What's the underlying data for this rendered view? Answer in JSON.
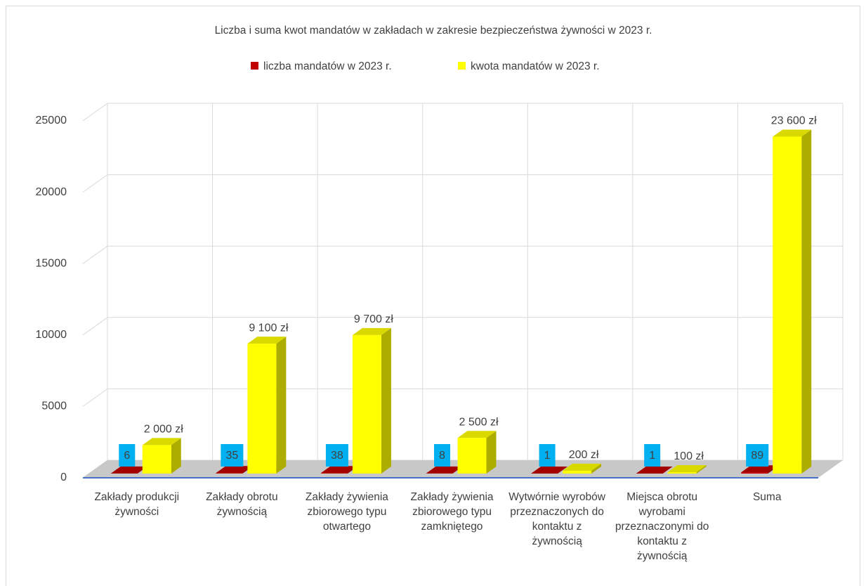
{
  "chart_data": {
    "type": "bar3d",
    "title": "Liczba i suma kwot mandatów w zakładach w zakresie bezpieczeństwa żywności w 2023 r.",
    "categories": [
      "Zakłady produkcji żywności",
      "Zakłady obrotu żywnością",
      "Zakłady żywienia zbiorowego typu otwartego",
      "Zakłady żywienia zbiorowego typu zamkniętego",
      "Wytwórnie wyrobów przeznaczonych do kontaktu z żywnością",
      "Miejsca obrotu wyrobami przeznaczonymi do kontaktu z żywnością",
      "Suma"
    ],
    "series": [
      {
        "name": "liczba mandatów w 2023 r.",
        "color": "#c00000",
        "values": [
          6,
          35,
          38,
          8,
          1,
          1,
          89
        ]
      },
      {
        "name": "kwota mandatów w 2023 r.",
        "color": "#ffff00",
        "values": [
          2000,
          9100,
          9700,
          2500,
          200,
          100,
          23600
        ],
        "value_labels": [
          "2 000 zł",
          "9 100 zł",
          "9 700 zł",
          "2 500 zł",
          "200 zł",
          "100 zł",
          "23 600 zł"
        ]
      }
    ],
    "ylim": [
      0,
      25000
    ],
    "yticks": [
      0,
      5000,
      10000,
      15000,
      20000,
      25000
    ],
    "grid": true,
    "legend": "top"
  }
}
